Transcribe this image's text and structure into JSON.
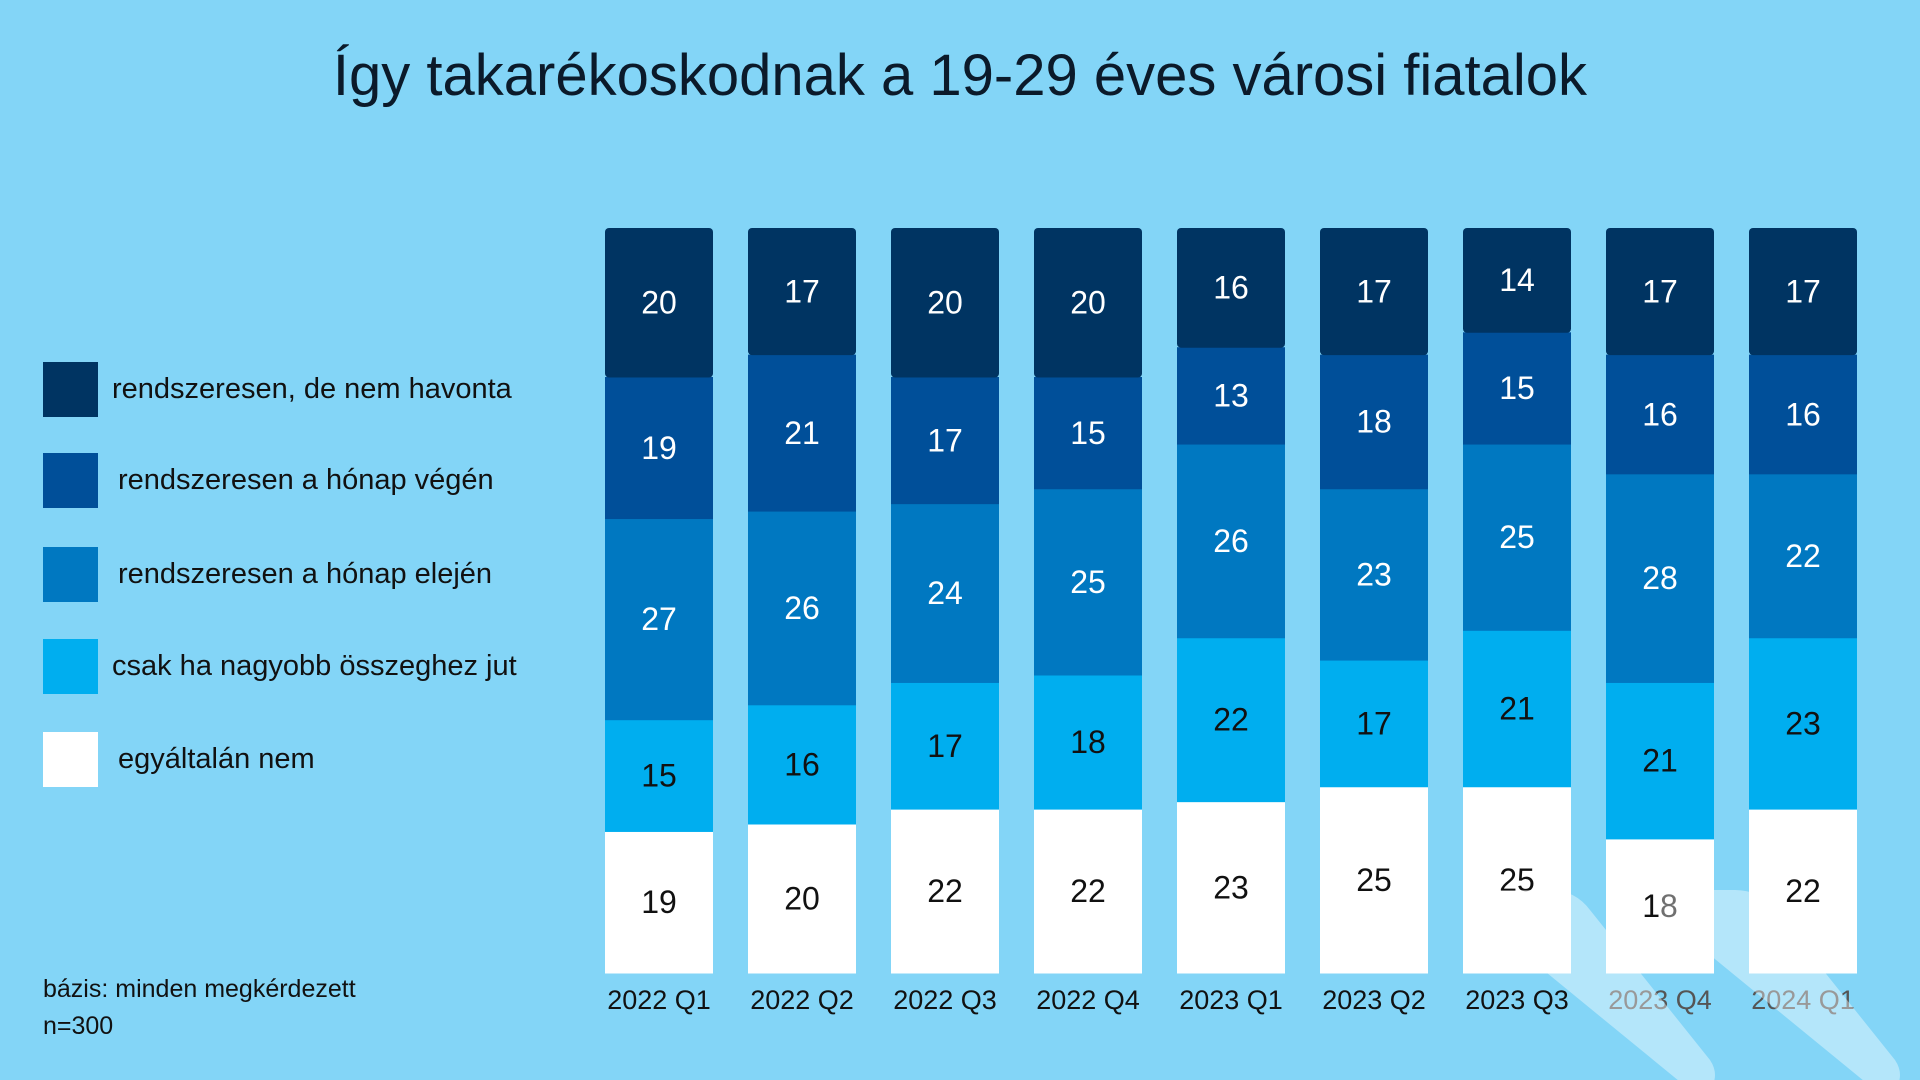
{
  "chart_data": {
    "type": "bar",
    "stacked": true,
    "title": "Így takarékoskodnak a 19-29 éves városi fiatalok",
    "categories": [
      "2022 Q1",
      "2022 Q2",
      "2022 Q3",
      "2022 Q4",
      "2023 Q1",
      "2023 Q2",
      "2023 Q3",
      "2023 Q4",
      "2024 Q1"
    ],
    "series": [
      {
        "name": "egyáltalán nem",
        "color": "#ffffff",
        "label_color": "#111111",
        "values": [
          19,
          20,
          22,
          22,
          23,
          25,
          25,
          18,
          22
        ]
      },
      {
        "name": "csak ha nagyobb összeghez jut",
        "color": "#00aeef",
        "label_color": "#111111",
        "values": [
          15,
          16,
          17,
          18,
          22,
          17,
          21,
          21,
          23
        ]
      },
      {
        "name": "rendszeresen a hónap elején",
        "color": "#0078c1",
        "label_color": "#ffffff",
        "values": [
          27,
          26,
          24,
          25,
          26,
          23,
          25,
          28,
          22
        ]
      },
      {
        "name": "rendszeresen a hónap végén",
        "color": "#004f99",
        "label_color": "#ffffff",
        "values": [
          19,
          21,
          17,
          15,
          13,
          18,
          15,
          16,
          16
        ]
      },
      {
        "name": "rendszeresen, de nem havonta",
        "color": "#003462",
        "label_color": "#ffffff",
        "values": [
          20,
          17,
          20,
          20,
          16,
          17,
          14,
          17,
          17
        ]
      }
    ],
    "legend_position": "left",
    "grid": false,
    "data_labels": true
  },
  "footnote": {
    "base": "bázis: minden megkérdezett",
    "n": "n=300"
  },
  "background": "#83d5f7"
}
